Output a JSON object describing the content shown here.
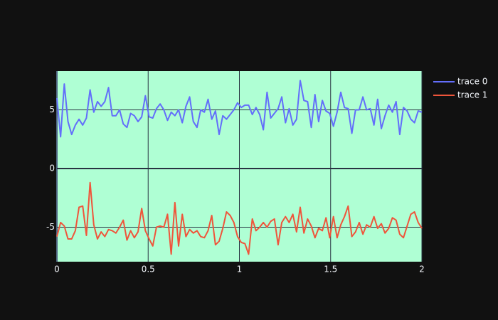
{
  "chart_data": {
    "type": "line",
    "x": [
      0,
      0.0202,
      0.0404,
      0.0606,
      0.0808,
      0.101,
      0.1212,
      0.1414,
      0.1616,
      0.1818,
      0.202,
      0.2222,
      0.2424,
      0.2626,
      0.2828,
      0.303,
      0.3232,
      0.3434,
      0.3636,
      0.3838,
      0.404,
      0.4242,
      0.4444,
      0.4646,
      0.4848,
      0.5051,
      0.5253,
      0.5455,
      0.5657,
      0.5859,
      0.6061,
      0.6263,
      0.6465,
      0.6667,
      0.6869,
      0.7071,
      0.7273,
      0.7475,
      0.7677,
      0.7879,
      0.8081,
      0.8283,
      0.8485,
      0.8687,
      0.8889,
      0.9091,
      0.9293,
      0.9495,
      0.9697,
      0.9899,
      1.0101,
      1.0303,
      1.0505,
      1.0707,
      1.0909,
      1.1111,
      1.1313,
      1.1515,
      1.1717,
      1.1919,
      1.2121,
      1.2323,
      1.2525,
      1.2727,
      1.2929,
      1.3131,
      1.3333,
      1.3535,
      1.3737,
      1.3939,
      1.4141,
      1.4343,
      1.4545,
      1.4747,
      1.4949,
      1.5152,
      1.5354,
      1.5556,
      1.5758,
      1.596,
      1.6162,
      1.6364,
      1.6566,
      1.6768,
      1.697,
      1.7172,
      1.7374,
      1.7576,
      1.7778,
      1.798,
      1.8182,
      1.8384,
      1.8586,
      1.8788,
      1.899,
      1.9192,
      1.9394,
      1.9596,
      1.9798,
      2
    ],
    "series": [
      {
        "name": "trace 0",
        "color": "#636efa",
        "values": [
          6,
          2.7,
          7.2,
          4,
          2.9,
          3.7,
          4.2,
          3.7,
          4.3,
          6.7,
          4.8,
          5.7,
          5.3,
          5.7,
          6.9,
          4.5,
          4.5,
          5,
          3.8,
          3.5,
          4.7,
          4.5,
          4,
          4.4,
          6.2,
          4.4,
          4.3,
          5.1,
          5.5,
          5,
          4.1,
          4.8,
          4.5,
          5,
          3.9,
          5.3,
          6.1,
          4,
          3.5,
          5,
          4.8,
          5.9,
          4.2,
          4.9,
          2.9,
          4.5,
          4.2,
          4.6,
          5,
          5.6,
          5.2,
          5.4,
          5.4,
          4.6,
          5.2,
          4.6,
          3.3,
          6.5,
          4.3,
          4.7,
          5.1,
          6.1,
          3.9,
          5.1,
          3.7,
          4.2,
          7.5,
          5.8,
          5.7,
          3.5,
          6.3,
          4,
          5.8,
          4.9,
          4.7,
          3.6,
          4.8,
          6.5,
          5.2,
          5.1,
          3,
          5,
          5,
          6.1,
          5,
          5.1,
          3.7,
          5.9,
          3.4,
          4.5,
          5.4,
          4.8,
          5.7,
          2.9,
          5.2,
          4.9,
          4.2,
          3.9,
          4.9,
          4.8
        ]
      },
      {
        "name": "trace 1",
        "color": "#ef553b",
        "values": [
          -5.8,
          -4.6,
          -4.9,
          -6,
          -6,
          -5.3,
          -3.3,
          -3.2,
          -5.7,
          -1.2,
          -4.8,
          -6,
          -5.4,
          -5.8,
          -5.2,
          -5.3,
          -5.5,
          -5,
          -4.4,
          -6.1,
          -5.3,
          -5.9,
          -5.4,
          -3.4,
          -5.3,
          -6,
          -6.6,
          -5,
          -4.9,
          -5,
          -3.9,
          -7.3,
          -2.9,
          -6.6,
          -3.9,
          -5.8,
          -5.2,
          -5.5,
          -5.3,
          -5.8,
          -5.9,
          -5.3,
          -4,
          -6.5,
          -6.2,
          -5.1,
          -3.7,
          -4,
          -4.6,
          -5.8,
          -6.3,
          -6.4,
          -7.3,
          -4.3,
          -5.3,
          -5,
          -4.6,
          -5,
          -4.5,
          -4.3,
          -6.5,
          -4.6,
          -4.1,
          -4.6,
          -3.9,
          -5.4,
          -3.3,
          -5.5,
          -4.3,
          -4.9,
          -5.9,
          -5.1,
          -5.3,
          -4.2,
          -5.9,
          -4.1,
          -5.9,
          -4.8,
          -4.1,
          -3.2,
          -5.8,
          -5.4,
          -4.6,
          -5.6,
          -4.8,
          -5,
          -4.1,
          -5.1,
          -4.7,
          -5.5,
          -5.1,
          -4.2,
          -4.4,
          -5.6,
          -5.9,
          -4.9,
          -3.9,
          -3.7,
          -4.6,
          -5.1
        ]
      }
    ],
    "xlim": [
      0,
      2
    ],
    "xticks": [
      0,
      0.5,
      1,
      1.5,
      2
    ],
    "ylim": [
      -7.94,
      8.3
    ],
    "yticks": [
      -5,
      0,
      5
    ],
    "grid": true,
    "legend": "top-right",
    "plot_background": "#afffd4"
  }
}
